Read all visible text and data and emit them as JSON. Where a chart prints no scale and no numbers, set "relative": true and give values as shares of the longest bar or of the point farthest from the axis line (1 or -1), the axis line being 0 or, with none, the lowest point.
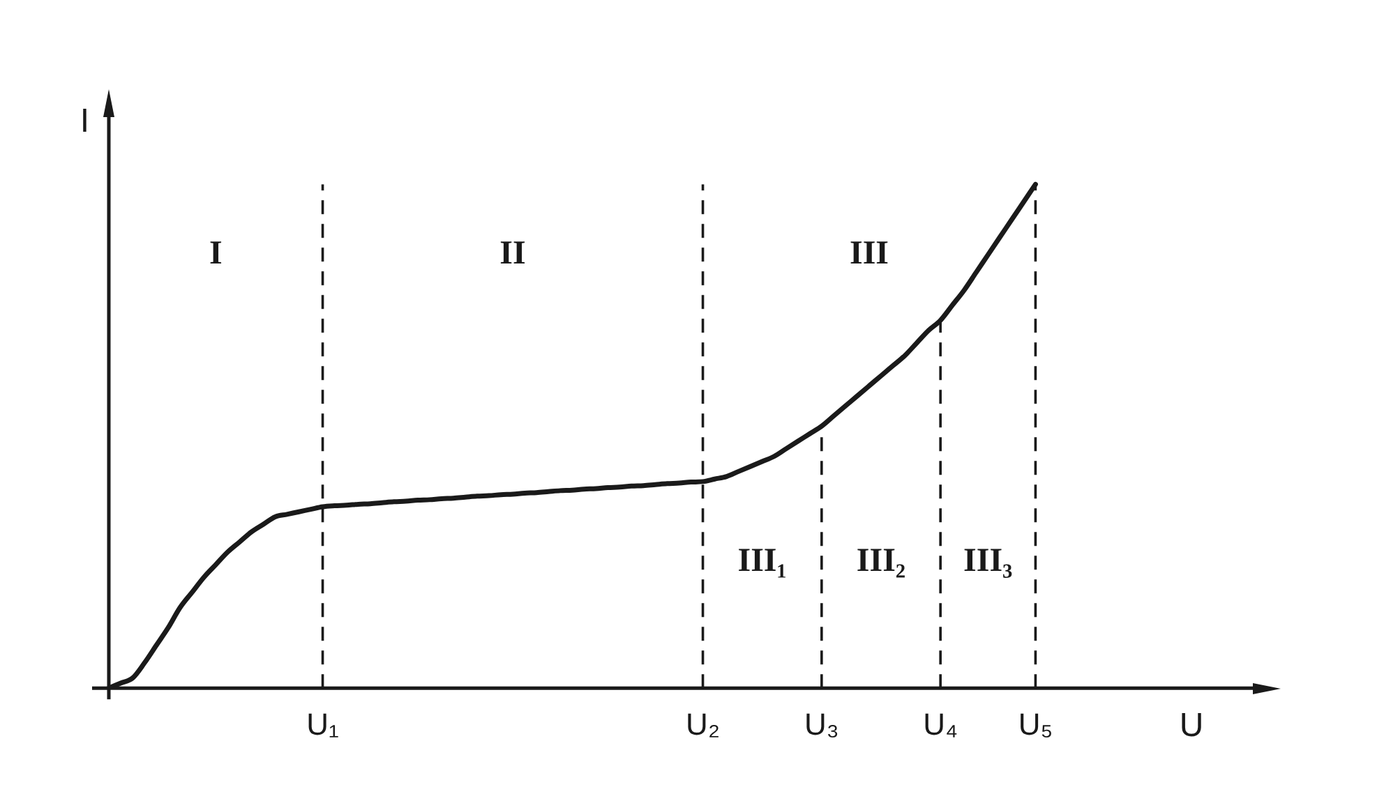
{
  "chart_data": {
    "type": "line",
    "relative": true,
    "xlabel": "U",
    "ylabel": "I",
    "color": "#1a1a1a",
    "legend": false,
    "grid": false,
    "tick_labels": "x",
    "marker": "none",
    "line_style": "solid",
    "categories": [
      null,
      null,
      null,
      null,
      null,
      null,
      null,
      null,
      null,
      null,
      null,
      null,
      null,
      null,
      null,
      null,
      null,
      null,
      "U₁",
      null,
      null,
      null,
      null,
      null,
      null,
      null,
      null,
      null,
      null,
      null,
      null,
      null,
      null,
      null,
      null,
      null,
      null,
      null,
      null,
      null,
      null,
      null,
      null,
      null,
      null,
      null,
      null,
      null,
      null,
      null,
      "U₂",
      null,
      null,
      null,
      null,
      null,
      null,
      null,
      null,
      null,
      "U₃",
      null,
      null,
      null,
      null,
      null,
      null,
      null,
      null,
      null,
      "U₄",
      null,
      null,
      null,
      null,
      null,
      null,
      null,
      "U₅",
      null,
      null,
      null,
      null,
      null,
      null,
      null,
      null,
      null,
      null,
      null,
      null,
      null,
      null,
      null,
      null,
      null,
      null,
      null
    ],
    "values": [
      0,
      0.01,
      0.02,
      0.05,
      0.085,
      0.12,
      0.16,
      0.19,
      0.22,
      0.245,
      0.27,
      0.29,
      0.31,
      0.325,
      0.34,
      0.345,
      0.35,
      0.355,
      0.36,
      0.362,
      0.363,
      0.365,
      0.366,
      0.368,
      0.37,
      0.371,
      0.373,
      0.374,
      0.376,
      0.377,
      0.379,
      0.381,
      0.382,
      0.384,
      0.385,
      0.387,
      0.388,
      0.39,
      0.392,
      0.393,
      0.395,
      0.396,
      0.398,
      0.399,
      0.401,
      0.402,
      0.404,
      0.406,
      0.407,
      0.409,
      0.41,
      0.415,
      0.42,
      0.43,
      0.44,
      0.45,
      0.46,
      0.475,
      0.49,
      0.505,
      0.52,
      0.54,
      0.56,
      0.58,
      0.6,
      0.62,
      0.64,
      0.66,
      0.685,
      0.71,
      0.73,
      0.76,
      0.79,
      0.825,
      0.86,
      0.895,
      0.93,
      0.965,
      1,
      null,
      null,
      null,
      null,
      null,
      null,
      null,
      null,
      null,
      null,
      null,
      null,
      null,
      null,
      null,
      null,
      null,
      null,
      null
    ],
    "ref_lines": [
      {
        "axis": "x",
        "value": "U₁",
        "line_style": "dashed"
      },
      {
        "axis": "x",
        "value": "U₂",
        "line_style": "dashed"
      },
      {
        "axis": "x",
        "value": "U₃",
        "line_style": "dashed"
      },
      {
        "axis": "x",
        "value": "U₄",
        "line_style": "dashed"
      },
      {
        "axis": "x",
        "value": "U₅",
        "line_style": "dashed"
      }
    ],
    "annotations": [
      "I",
      "II",
      "III",
      "III₁",
      "III₂",
      "III₃"
    ]
  }
}
